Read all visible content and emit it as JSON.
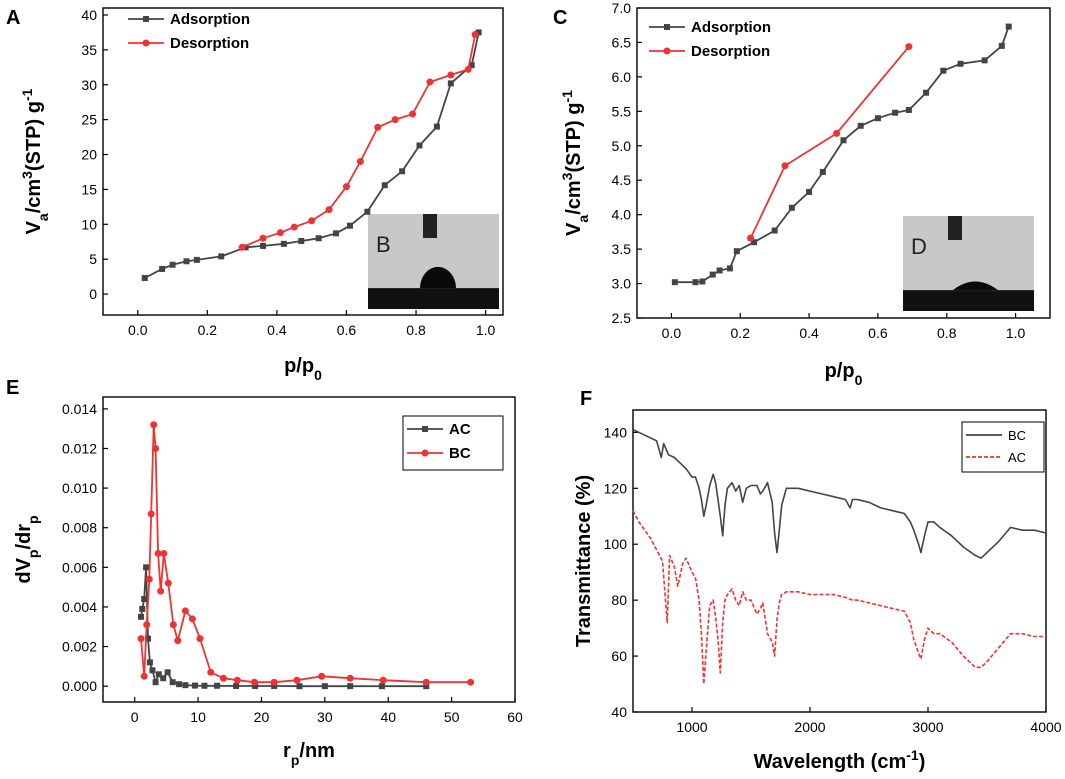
{
  "chart_data": [
    {
      "panel": "A",
      "type": "line",
      "xlabel_parts": [
        "p/p",
        "0"
      ],
      "ylabel_parts": [
        "V",
        "a",
        "/cm",
        "3",
        "(STP) g",
        "-1"
      ],
      "xlim": [
        -0.1,
        1.05
      ],
      "ylim": [
        -3,
        41
      ],
      "xticks": [
        0.0,
        0.2,
        0.4,
        0.6,
        0.8,
        1.0
      ],
      "xtick_labels": [
        "0.0",
        "0.2",
        "0.4",
        "0.6",
        "0.8",
        "1.0"
      ],
      "yticks": [
        0,
        5,
        10,
        15,
        20,
        25,
        30,
        35,
        40
      ],
      "ytick_labels": [
        "0",
        "5",
        "10",
        "15",
        "20",
        "25",
        "30",
        "35",
        "40"
      ],
      "legend": [
        "Adsorption",
        "Desorption"
      ],
      "inset_label": "B",
      "series": [
        {
          "name": "Adsorption",
          "color": "#444444",
          "marker": "square",
          "x": [
            0.02,
            0.07,
            0.1,
            0.14,
            0.17,
            0.24,
            0.31,
            0.36,
            0.42,
            0.47,
            0.52,
            0.57,
            0.61,
            0.66,
            0.71,
            0.76,
            0.81,
            0.86,
            0.9,
            0.96,
            0.98
          ],
          "y": [
            2.3,
            3.6,
            4.2,
            4.7,
            4.9,
            5.4,
            6.7,
            6.9,
            7.2,
            7.6,
            8.0,
            8.7,
            9.8,
            11.8,
            15.6,
            17.6,
            21.3,
            24.0,
            30.2,
            32.8,
            37.5
          ]
        },
        {
          "name": "Desorption",
          "color": "#ee3333",
          "marker": "circle",
          "x": [
            0.3,
            0.36,
            0.41,
            0.45,
            0.5,
            0.55,
            0.6,
            0.64,
            0.69,
            0.74,
            0.79,
            0.84,
            0.9,
            0.95,
            0.97
          ],
          "y": [
            6.7,
            8.0,
            8.8,
            9.6,
            10.5,
            12.1,
            15.4,
            19.0,
            23.9,
            25.0,
            25.8,
            30.4,
            31.4,
            32.2,
            37.2
          ]
        }
      ]
    },
    {
      "panel": "C",
      "type": "line",
      "xlabel_parts": [
        "p/p",
        "0"
      ],
      "ylabel_parts": [
        "V",
        "a",
        "/cm",
        "3",
        "(STP) g",
        "-1"
      ],
      "xlim": [
        -0.1,
        1.1
      ],
      "ylim": [
        2.5,
        7.0
      ],
      "xticks": [
        0.0,
        0.2,
        0.4,
        0.6,
        0.8,
        1.0
      ],
      "xtick_labels": [
        "0.0",
        "0.2",
        "0.4",
        "0.6",
        "0.8",
        "1.0"
      ],
      "yticks": [
        2.5,
        3.0,
        3.5,
        4.0,
        4.5,
        5.0,
        5.5,
        6.0,
        6.5,
        7.0
      ],
      "ytick_labels": [
        "2.5",
        "3.0",
        "3.5",
        "4.0",
        "4.5",
        "5.0",
        "5.5",
        "6.0",
        "6.5",
        "7.0"
      ],
      "legend": [
        "Adsorption",
        "Desorption"
      ],
      "inset_label": "D",
      "series": [
        {
          "name": "Adsorption",
          "color": "#444444",
          "marker": "square",
          "x": [
            0.01,
            0.07,
            0.09,
            0.12,
            0.14,
            0.17,
            0.19,
            0.24,
            0.3,
            0.35,
            0.4,
            0.44,
            0.5,
            0.55,
            0.6,
            0.65,
            0.69,
            0.74,
            0.79,
            0.84,
            0.91,
            0.96,
            0.98
          ],
          "y": [
            3.02,
            3.02,
            3.03,
            3.13,
            3.19,
            3.22,
            3.47,
            3.6,
            3.77,
            4.1,
            4.33,
            4.62,
            5.08,
            5.29,
            5.4,
            5.48,
            5.52,
            5.77,
            6.09,
            6.19,
            6.24,
            6.45,
            6.73
          ]
        },
        {
          "name": "Desorption",
          "color": "#ee3333",
          "marker": "circle",
          "x": [
            0.23,
            0.33,
            0.48,
            0.69
          ],
          "y": [
            3.66,
            4.71,
            5.18,
            6.44
          ]
        }
      ]
    },
    {
      "panel": "E",
      "type": "line",
      "xlabel_parts": [
        "r",
        "p",
        "/nm"
      ],
      "ylabel_parts": [
        "dV",
        "p",
        "/dr",
        "p"
      ],
      "xlim": [
        -5,
        60
      ],
      "ylim": [
        -0.0008,
        0.0146
      ],
      "xticks": [
        0,
        10,
        20,
        30,
        40,
        50,
        60
      ],
      "xtick_labels": [
        "0",
        "10",
        "20",
        "30",
        "40",
        "50",
        "60"
      ],
      "yticks": [
        0.0,
        0.002,
        0.004,
        0.006,
        0.008,
        0.01,
        0.012,
        0.014
      ],
      "ytick_labels": [
        "0.000",
        "0.002",
        "0.004",
        "0.006",
        "0.008",
        "0.010",
        "0.012",
        "0.014"
      ],
      "legend": [
        "AC",
        "BC"
      ],
      "series": [
        {
          "name": "AC",
          "color": "#444444",
          "marker": "square",
          "x": [
            1.0,
            1.2,
            1.5,
            1.8,
            2.1,
            2.4,
            2.8,
            3.3,
            3.8,
            4.5,
            5.2,
            6.0,
            7.0,
            8.0,
            9.5,
            11,
            13,
            16,
            19,
            22,
            26,
            30,
            34,
            39,
            46
          ],
          "y": [
            0.0035,
            0.0039,
            0.0044,
            0.006,
            0.0024,
            0.0012,
            0.0008,
            0.0002,
            0.0006,
            0.0004,
            0.0007,
            0.0002,
            0.0001,
            5e-05,
            3e-05,
            2e-05,
            2e-05,
            1e-05,
            1e-05,
            1e-05,
            0.0,
            0.0,
            0.0,
            0.0,
            0.0
          ]
        },
        {
          "name": "BC",
          "color": "#ee3333",
          "marker": "circle",
          "x": [
            1.0,
            1.5,
            1.9,
            2.3,
            2.6,
            3.0,
            3.3,
            3.7,
            4.1,
            4.6,
            5.3,
            6.1,
            6.8,
            8.0,
            9.1,
            10.3,
            12.0,
            14.0,
            16.2,
            18.9,
            22.0,
            25.6,
            29.5,
            34.0,
            39.2,
            46.0,
            53.0
          ],
          "y": [
            0.0024,
            0.0005,
            0.0031,
            0.0054,
            0.0087,
            0.0132,
            0.012,
            0.0067,
            0.0048,
            0.0067,
            0.0052,
            0.0031,
            0.0023,
            0.0038,
            0.0034,
            0.0024,
            0.0007,
            0.0004,
            0.0003,
            0.0002,
            0.0002,
            0.0003,
            0.0005,
            0.0004,
            0.0003,
            0.0002,
            0.0002
          ]
        }
      ]
    },
    {
      "panel": "F",
      "type": "line",
      "xlabel_parts": [
        "Wavelength (cm",
        "-1",
        ")"
      ],
      "ylabel_parts": [
        "Transmittance (%)"
      ],
      "xlim": [
        500,
        4000
      ],
      "ylim": [
        40,
        148
      ],
      "xticks": [
        1000,
        2000,
        3000,
        4000
      ],
      "xtick_labels": [
        "1000",
        "2000",
        "3000",
        "4000"
      ],
      "yticks": [
        40,
        60,
        80,
        100,
        120,
        140
      ],
      "ytick_labels": [
        "40",
        "60",
        "80",
        "100",
        "120",
        "140"
      ],
      "legend": [
        "BC",
        "AC"
      ],
      "series": [
        {
          "name": "BC",
          "color": "#444444",
          "style": "solid",
          "x": [
            500,
            600,
            700,
            740,
            760,
            800,
            850,
            900,
            950,
            1000,
            1030,
            1060,
            1080,
            1100,
            1120,
            1150,
            1180,
            1200,
            1220,
            1240,
            1260,
            1280,
            1300,
            1340,
            1370,
            1400,
            1430,
            1460,
            1500,
            1550,
            1580,
            1600,
            1640,
            1680,
            1700,
            1720,
            1740,
            1760,
            1800,
            1900,
            2000,
            2100,
            2200,
            2300,
            2340,
            2360,
            2400,
            2500,
            2600,
            2700,
            2800,
            2850,
            2880,
            2920,
            2940,
            2970,
            3000,
            3050,
            3100,
            3200,
            3300,
            3400,
            3450,
            3500,
            3600,
            3700,
            3800,
            3900,
            4000
          ],
          "y": [
            141,
            139,
            137,
            131,
            136,
            132,
            131,
            129,
            127,
            124,
            124,
            120,
            116,
            110,
            114,
            121,
            125,
            122,
            116,
            110,
            103,
            114,
            120,
            122,
            119,
            121,
            115,
            120,
            121,
            121,
            118,
            119,
            122,
            115,
            104,
            97,
            105,
            114,
            120,
            120,
            119,
            118,
            117,
            116,
            113,
            116,
            116,
            115,
            113,
            112,
            111,
            108,
            105,
            100,
            97,
            103,
            108,
            108,
            106,
            103,
            99,
            96,
            95,
            97,
            101,
            106,
            105,
            105,
            104
          ]
        },
        {
          "name": "AC",
          "color": "#ee3333",
          "style": "dashed",
          "x": [
            500,
            550,
            600,
            650,
            700,
            750,
            790,
            810,
            850,
            880,
            920,
            950,
            1000,
            1030,
            1060,
            1080,
            1100,
            1120,
            1150,
            1180,
            1200,
            1220,
            1240,
            1260,
            1280,
            1300,
            1340,
            1370,
            1400,
            1430,
            1460,
            1500,
            1550,
            1580,
            1600,
            1640,
            1680,
            1700,
            1720,
            1740,
            1760,
            1800,
            1900,
            2000,
            2100,
            2200,
            2300,
            2360,
            2400,
            2500,
            2600,
            2700,
            2800,
            2850,
            2880,
            2920,
            2940,
            2970,
            3000,
            3050,
            3100,
            3200,
            3300,
            3400,
            3450,
            3500,
            3600,
            3700,
            3800,
            3900,
            4000
          ],
          "y": [
            112,
            108,
            105,
            102,
            98,
            94,
            72,
            96,
            92,
            85,
            93,
            95,
            90,
            88,
            80,
            68,
            50,
            62,
            78,
            80,
            74,
            66,
            54,
            72,
            80,
            82,
            84,
            80,
            78,
            83,
            80,
            80,
            75,
            77,
            79,
            68,
            65,
            60,
            73,
            79,
            82,
            83,
            83,
            82,
            82,
            82,
            81,
            80,
            80,
            79,
            78,
            77,
            76,
            72,
            66,
            61,
            59,
            66,
            70,
            68,
            68,
            65,
            60,
            56,
            56,
            58,
            63,
            68,
            68,
            67,
            67
          ]
        }
      ]
    }
  ],
  "panel_letters": {
    "A": "A",
    "C": "C",
    "E": "E",
    "F": "F"
  }
}
